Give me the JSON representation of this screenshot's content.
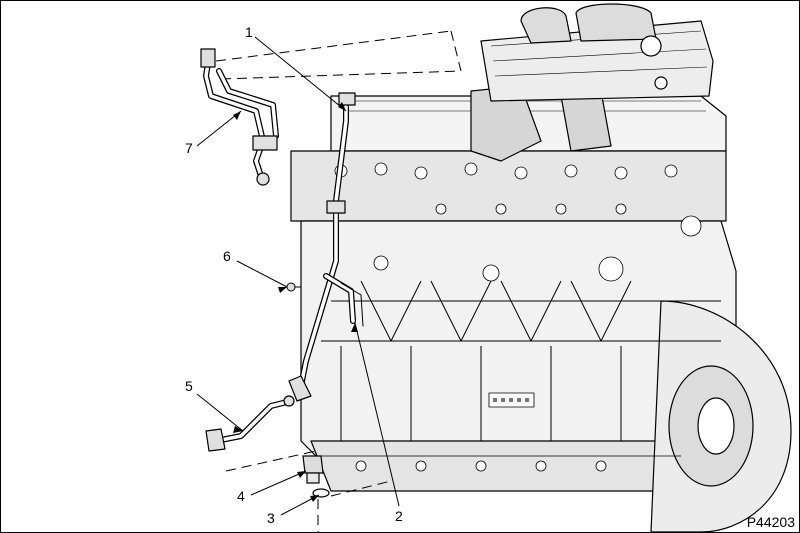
{
  "figure_id": "P44203",
  "callouts": [
    {
      "num": "1"
    },
    {
      "num": "2"
    },
    {
      "num": "3"
    },
    {
      "num": "4"
    },
    {
      "num": "5"
    },
    {
      "num": "6"
    },
    {
      "num": "7"
    }
  ],
  "colors": {
    "line": "#000000",
    "fill_light": "#f4f4f4",
    "fill_mid": "#dcdcdc",
    "fill_dark": "#b8b8b8",
    "background": "#ffffff"
  }
}
